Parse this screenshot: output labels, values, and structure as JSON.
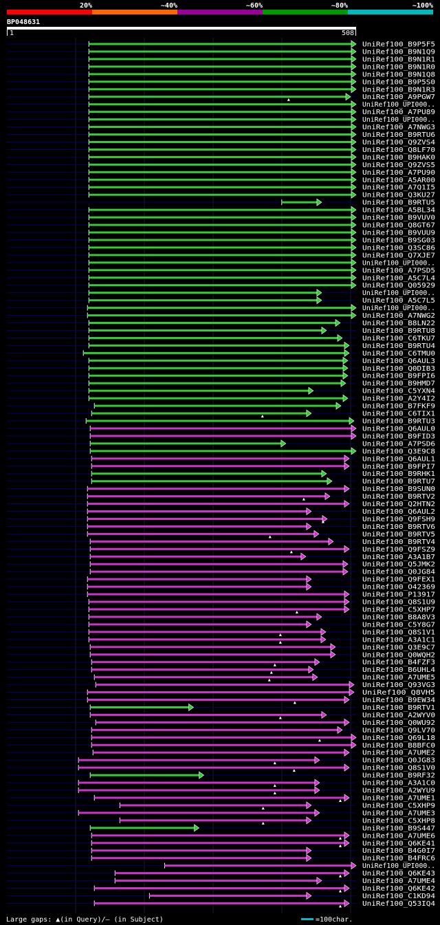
{
  "legend": {
    "labels": [
      "20%",
      "~40%",
      "~60%",
      "~80%",
      "~100%"
    ],
    "colors": [
      "#ff0000",
      "#ff6600",
      "#990099",
      "#009900",
      "#00bbbb"
    ]
  },
  "query": {
    "id": "BP048631",
    "start": "1",
    "end": "508",
    "length": 508
  },
  "colors": {
    "bg": "#000000",
    "ruler": "#ffffff",
    "dashline": "#000066",
    "grid": "#222222",
    "green": "#33cc33",
    "purple": "#cc33cc",
    "text": "#ffffff",
    "scale": "#00bbcc"
  },
  "footer": {
    "gap_text": "Large gaps: ▲(in Query)/– (in Subject)",
    "scale_text": "=100char."
  },
  "chart_data": {
    "type": "alignment-overview",
    "title": "BP048631",
    "axis_range": [
      1,
      508
    ],
    "color_scale": [
      "20%",
      "~40%",
      "~60%",
      "~80%",
      "~100%"
    ],
    "hits": [
      {
        "label": "UniRef100_B9P5F5",
        "color": "green",
        "start": 120,
        "end": 508,
        "gap": null
      },
      {
        "label": "UniRef100_B9N1Q9",
        "color": "green",
        "start": 120,
        "end": 508,
        "gap": null
      },
      {
        "label": "UniRef100_B9N1R1",
        "color": "green",
        "start": 120,
        "end": 508,
        "gap": null
      },
      {
        "label": "UniRef100_B9N1R0",
        "color": "green",
        "start": 120,
        "end": 508,
        "gap": null
      },
      {
        "label": "UniRef100_B9N1Q8",
        "color": "green",
        "start": 120,
        "end": 508,
        "gap": null
      },
      {
        "label": "UniRef100_B9P5S0",
        "color": "green",
        "start": 120,
        "end": 508,
        "gap": null
      },
      {
        "label": "UniRef100_B9N1R3",
        "color": "green",
        "start": 120,
        "end": 508,
        "gap": null
      },
      {
        "label": "UniRef100_A9PGW7",
        "color": "green",
        "start": 120,
        "end": 500,
        "gap": 410
      },
      {
        "label": "UniRef100_UPI000..",
        "color": "green",
        "start": 120,
        "end": 508,
        "gap": null
      },
      {
        "label": "UniRef100_A7PU89",
        "color": "green",
        "start": 120,
        "end": 508,
        "gap": null
      },
      {
        "label": "UniRef100_UPI000..",
        "color": "green",
        "start": 120,
        "end": 508,
        "gap": null
      },
      {
        "label": "UniRef100_A7NWG3",
        "color": "green",
        "start": 120,
        "end": 508,
        "gap": null
      },
      {
        "label": "UniRef100_B9RTU6",
        "color": "green",
        "start": 120,
        "end": 508,
        "gap": null
      },
      {
        "label": "UniRef100_Q9ZVS4",
        "color": "green",
        "start": 120,
        "end": 508,
        "gap": null
      },
      {
        "label": "UniRef100_Q8LF70",
        "color": "green",
        "start": 120,
        "end": 508,
        "gap": null
      },
      {
        "label": "UniRef100_B9HAK0",
        "color": "green",
        "start": 120,
        "end": 508,
        "gap": null
      },
      {
        "label": "UniRef100_Q9ZVS5",
        "color": "green",
        "start": 120,
        "end": 508,
        "gap": null
      },
      {
        "label": "UniRef100_A7PU90",
        "color": "green",
        "start": 120,
        "end": 508,
        "gap": null
      },
      {
        "label": "UniRef100_A5AR00",
        "color": "green",
        "start": 120,
        "end": 508,
        "gap": null
      },
      {
        "label": "UniRef100_A7Q1I5",
        "color": "green",
        "start": 120,
        "end": 508,
        "gap": null
      },
      {
        "label": "UniRef100_Q3KU27",
        "color": "green",
        "start": 120,
        "end": 508,
        "gap": null
      },
      {
        "label": "UniRef100_B9RTU5",
        "color": "green",
        "start": 400,
        "end": 458,
        "gap": null
      },
      {
        "label": "UniRef100_A5BL34",
        "color": "green",
        "start": 120,
        "end": 508,
        "gap": null
      },
      {
        "label": "UniRef100_B9VUV0",
        "color": "green",
        "start": 120,
        "end": 508,
        "gap": null
      },
      {
        "label": "UniRef100_Q8GT67",
        "color": "green",
        "start": 120,
        "end": 508,
        "gap": null
      },
      {
        "label": "UniRef100_B9VUU9",
        "color": "green",
        "start": 120,
        "end": 508,
        "gap": null
      },
      {
        "label": "UniRef100_B9SG03",
        "color": "green",
        "start": 120,
        "end": 508,
        "gap": null
      },
      {
        "label": "UniRef100_Q3SC86",
        "color": "green",
        "start": 120,
        "end": 508,
        "gap": null
      },
      {
        "label": "UniRef100_Q7XJE7",
        "color": "green",
        "start": 120,
        "end": 508,
        "gap": null
      },
      {
        "label": "UniRef100_UPI000..",
        "color": "green",
        "start": 120,
        "end": 508,
        "gap": null
      },
      {
        "label": "UniRef100_A7PSD5",
        "color": "green",
        "start": 120,
        "end": 508,
        "gap": null
      },
      {
        "label": "UniRef100_A5C7L4",
        "color": "green",
        "start": 120,
        "end": 508,
        "gap": null
      },
      {
        "label": "UniRef100_Q05929",
        "color": "green",
        "start": 120,
        "end": 508,
        "gap": null
      },
      {
        "label": "UniRef100_UPI000..",
        "color": "green",
        "start": 120,
        "end": 458,
        "gap": null
      },
      {
        "label": "UniRef100_A5C7L5",
        "color": "green",
        "start": 120,
        "end": 458,
        "gap": null
      },
      {
        "label": "UniRef100_UPI000..",
        "color": "green",
        "start": 118,
        "end": 508,
        "gap": null
      },
      {
        "label": "UniRef100_A7NWG2",
        "color": "green",
        "start": 118,
        "end": 508,
        "gap": null
      },
      {
        "label": "UniRef100_B8LN22",
        "color": "green",
        "start": 120,
        "end": 485,
        "gap": null
      },
      {
        "label": "UniRef100_B9RTU8",
        "color": "green",
        "start": 120,
        "end": 465,
        "gap": null
      },
      {
        "label": "UniRef100_C6TKU7",
        "color": "green",
        "start": 120,
        "end": 488,
        "gap": null
      },
      {
        "label": "UniRef100_B9RTU4",
        "color": "green",
        "start": 120,
        "end": 498,
        "gap": null
      },
      {
        "label": "UniRef100_C6TMU0",
        "color": "green",
        "start": 112,
        "end": 498,
        "gap": null
      },
      {
        "label": "UniRef100_Q6AUL3",
        "color": "green",
        "start": 120,
        "end": 496,
        "gap": null
      },
      {
        "label": "UniRef100_Q0DIB3",
        "color": "green",
        "start": 120,
        "end": 496,
        "gap": null
      },
      {
        "label": "UniRef100_B9FPI6",
        "color": "green",
        "start": 120,
        "end": 496,
        "gap": null
      },
      {
        "label": "UniRef100_B9HMD7",
        "color": "green",
        "start": 120,
        "end": 493,
        "gap": null
      },
      {
        "label": "UniRef100_C5YXN4",
        "color": "green",
        "start": 120,
        "end": 446,
        "gap": null
      },
      {
        "label": "UniRef100_A2Y4I2",
        "color": "green",
        "start": 120,
        "end": 496,
        "gap": null
      },
      {
        "label": "UniRef100_B7FKF9",
        "color": "green",
        "start": 128,
        "end": 486,
        "gap": null
      },
      {
        "label": "UniRef100_C6TIX1",
        "color": "green",
        "start": 124,
        "end": 443,
        "gap": 372
      },
      {
        "label": "UniRef100_B9RTU3",
        "color": "green",
        "start": 116,
        "end": 505,
        "gap": null
      },
      {
        "label": "UniRef100_Q6AUL0",
        "color": "purple",
        "start": 122,
        "end": 508,
        "gap": null
      },
      {
        "label": "UniRef100_B9FID3",
        "color": "purple",
        "start": 122,
        "end": 508,
        "gap": null
      },
      {
        "label": "UniRef100_A7PSD6",
        "color": "green",
        "start": 122,
        "end": 406,
        "gap": null
      },
      {
        "label": "UniRef100_Q3E9C8",
        "color": "green",
        "start": 122,
        "end": 508,
        "gap": null
      },
      {
        "label": "UniRef100_Q6AUL1",
        "color": "purple",
        "start": 124,
        "end": 498,
        "gap": null
      },
      {
        "label": "UniRef100_B9FPI7",
        "color": "purple",
        "start": 124,
        "end": 498,
        "gap": null
      },
      {
        "label": "UniRef100_B9RHK1",
        "color": "green",
        "start": 124,
        "end": 465,
        "gap": null
      },
      {
        "label": "UniRef100_B9RTU7",
        "color": "green",
        "start": 124,
        "end": 473,
        "gap": null
      },
      {
        "label": "UniRef100_B9SUN0",
        "color": "purple",
        "start": 118,
        "end": 498,
        "gap": null
      },
      {
        "label": "UniRef100_B9RTV2",
        "color": "purple",
        "start": 118,
        "end": 470,
        "gap": 432
      },
      {
        "label": "UniRef100_Q2HTN2",
        "color": "purple",
        "start": 118,
        "end": 498,
        "gap": null
      },
      {
        "label": "UniRef100_Q6AUL2",
        "color": "purple",
        "start": 118,
        "end": 443,
        "gap": null
      },
      {
        "label": "UniRef100_Q9FSH9",
        "color": "purple",
        "start": 118,
        "end": 466,
        "gap": 460
      },
      {
        "label": "UniRef100_B9RTV6",
        "color": "purple",
        "start": 118,
        "end": 443,
        "gap": null
      },
      {
        "label": "UniRef100_B9RTV5",
        "color": "purple",
        "start": 118,
        "end": 454,
        "gap": 383
      },
      {
        "label": "UniRef100_B9RTV4",
        "color": "purple",
        "start": 122,
        "end": 475,
        "gap": null
      },
      {
        "label": "UniRef100_Q9FSZ9",
        "color": "purple",
        "start": 122,
        "end": 498,
        "gap": 414
      },
      {
        "label": "UniRef100_A3A1B7",
        "color": "purple",
        "start": 122,
        "end": 435,
        "gap": null
      },
      {
        "label": "UniRef100_Q5JMK2",
        "color": "purple",
        "start": 122,
        "end": 496,
        "gap": null
      },
      {
        "label": "UniRef100_Q0JG84",
        "color": "purple",
        "start": 122,
        "end": 496,
        "gap": null
      },
      {
        "label": "UniRef100_Q9FEX1",
        "color": "purple",
        "start": 118,
        "end": 443,
        "gap": null
      },
      {
        "label": "UniRef100_O42369",
        "color": "purple",
        "start": 118,
        "end": 443,
        "gap": null
      },
      {
        "label": "UniRef100_P13917",
        "color": "purple",
        "start": 118,
        "end": 498,
        "gap": null
      },
      {
        "label": "UniRef100_Q8S1U9",
        "color": "purple",
        "start": 120,
        "end": 498,
        "gap": null
      },
      {
        "label": "UniRef100_C5XHP7",
        "color": "purple",
        "start": 120,
        "end": 498,
        "gap": 422
      },
      {
        "label": "UniRef100_B8A8V3",
        "color": "purple",
        "start": 120,
        "end": 458,
        "gap": null
      },
      {
        "label": "UniRef100_C5Y8G7",
        "color": "purple",
        "start": 120,
        "end": 443,
        "gap": null
      },
      {
        "label": "UniRef100_Q8S1V1",
        "color": "purple",
        "start": 120,
        "end": 464,
        "gap": 398
      },
      {
        "label": "UniRef100_A3A1C1",
        "color": "purple",
        "start": 120,
        "end": 464,
        "gap": 398
      },
      {
        "label": "UniRef100_Q3E9C7",
        "color": "purple",
        "start": 122,
        "end": 478,
        "gap": null
      },
      {
        "label": "UniRef100_Q0WQH2",
        "color": "purple",
        "start": 122,
        "end": 478,
        "gap": null
      },
      {
        "label": "UniRef100_B4FZF3",
        "color": "purple",
        "start": 124,
        "end": 455,
        "gap": 390
      },
      {
        "label": "UniRef100_B6UHL4",
        "color": "purple",
        "start": 124,
        "end": 446,
        "gap": 385
      },
      {
        "label": "UniRef100_A7UME5",
        "color": "purple",
        "start": 128,
        "end": 452,
        "gap": 382
      },
      {
        "label": "UniRef100_Q93VG3",
        "color": "purple",
        "start": 130,
        "end": 505,
        "gap": null
      },
      {
        "label": "UniRef100_Q8VH5",
        "color": "purple",
        "start": 118,
        "end": 505,
        "gap": null
      },
      {
        "label": "UniRef100_B9EW34",
        "color": "purple",
        "start": 118,
        "end": 498,
        "gap": 419
      },
      {
        "label": "UniRef100_B9RTV1",
        "color": "green",
        "start": 122,
        "end": 272,
        "gap": null
      },
      {
        "label": "UniRef100_A2WYV0",
        "color": "purple",
        "start": 122,
        "end": 465,
        "gap": 398
      },
      {
        "label": "UniRef100_Q0WU92",
        "color": "purple",
        "start": 130,
        "end": 498,
        "gap": null
      },
      {
        "label": "UniRef100_Q9LV70",
        "color": "purple",
        "start": 124,
        "end": 488,
        "gap": null
      },
      {
        "label": "UniRef100_Q69L18",
        "color": "purple",
        "start": 124,
        "end": 508,
        "gap": 455
      },
      {
        "label": "UniRef100_B8BFC0",
        "color": "purple",
        "start": 124,
        "end": 508,
        "gap": null
      },
      {
        "label": "UniRef100_A7UME2",
        "color": "purple",
        "start": 126,
        "end": 498,
        "gap": null
      },
      {
        "label": "UniRef100_Q0JG83",
        "color": "purple",
        "start": 105,
        "end": 455,
        "gap": 390
      },
      {
        "label": "UniRef100_Q8S1V0",
        "color": "purple",
        "start": 105,
        "end": 498,
        "gap": 418
      },
      {
        "label": "UniRef100_B9RF32",
        "color": "green",
        "start": 122,
        "end": 287,
        "gap": null
      },
      {
        "label": "UniRef100_A3A1C0",
        "color": "purple",
        "start": 105,
        "end": 455,
        "gap": 390
      },
      {
        "label": "UniRef100_A2WYU9",
        "color": "purple",
        "start": 105,
        "end": 455,
        "gap": 390
      },
      {
        "label": "UniRef100_A7UME1",
        "color": "purple",
        "start": 128,
        "end": 498,
        "gap": 485
      },
      {
        "label": "UniRef100_C5XHP9",
        "color": "purple",
        "start": 165,
        "end": 443,
        "gap": 373
      },
      {
        "label": "UniRef100_A7UME3",
        "color": "purple",
        "start": 105,
        "end": 455,
        "gap": null
      },
      {
        "label": "UniRef100_C5XHP8",
        "color": "purple",
        "start": 165,
        "end": 443,
        "gap": 373
      },
      {
        "label": "UniRef100_B9S447",
        "color": "green",
        "start": 122,
        "end": 280,
        "gap": null
      },
      {
        "label": "UniRef100_A7UME6",
        "color": "purple",
        "start": 124,
        "end": 498,
        "gap": 485
      },
      {
        "label": "UniRef100_Q6KE41",
        "color": "purple",
        "start": 124,
        "end": 498,
        "gap": 485
      },
      {
        "label": "UniRef100_B4G0I7",
        "color": "purple",
        "start": 124,
        "end": 443,
        "gap": null
      },
      {
        "label": "UniRef100_B4FRC6",
        "color": "purple",
        "start": 124,
        "end": 443,
        "gap": null
      },
      {
        "label": "UniRef100_UPI000..",
        "color": "purple",
        "start": 230,
        "end": 508,
        "gap": null
      },
      {
        "label": "UniRef100_Q6KE43",
        "color": "purple",
        "start": 158,
        "end": 498,
        "gap": 485
      },
      {
        "label": "UniRef100_A7UME4",
        "color": "purple",
        "start": 158,
        "end": 458,
        "gap": null
      },
      {
        "label": "UniRef100_Q6KE42",
        "color": "purple",
        "start": 128,
        "end": 498,
        "gap": 485
      },
      {
        "label": "UniRef100_C1KD94",
        "color": "purple",
        "start": 208,
        "end": 443,
        "gap": null
      },
      {
        "label": "UniRef100_Q53IQ4",
        "color": "purple",
        "start": 128,
        "end": 498,
        "gap": 485
      }
    ]
  }
}
